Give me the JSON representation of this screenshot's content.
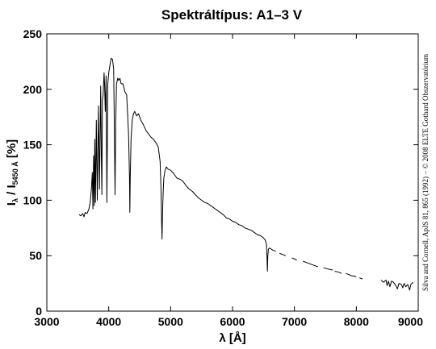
{
  "chart_data": {
    "type": "line",
    "title": "Spektráltípus: A1–3 V",
    "xlabel": "λ [Å]",
    "ylabel": {
      "main": "I",
      "sub1": "λ",
      "sep": " / I",
      "sub2": "5450 Å",
      "unit": " [%]"
    },
    "credit": "Silva and Cornell, ApJS 81, 865 (1992) − © 2008 ELTE Gothard Obszervatórium",
    "xlim": [
      3000,
      9000
    ],
    "ylim": [
      0,
      250
    ],
    "xticks": [
      3000,
      4000,
      5000,
      6000,
      7000,
      8000,
      9000
    ],
    "yticks": [
      0,
      50,
      100,
      150,
      200,
      250
    ],
    "grid": false,
    "color": "#000000",
    "series": [
      {
        "segments": [
          [
            [
              3520,
              87
            ],
            [
              3550,
              86
            ],
            [
              3580,
              88
            ],
            [
              3600,
              85
            ],
            [
              3620,
              89
            ],
            [
              3650,
              88
            ],
            [
              3680,
              92
            ],
            [
              3700,
              98
            ],
            [
              3720,
              110
            ],
            [
              3735,
              125
            ],
            [
              3745,
              92
            ],
            [
              3755,
              140
            ],
            [
              3765,
              95
            ],
            [
              3775,
              155
            ],
            [
              3785,
              98
            ],
            [
              3800,
              172
            ],
            [
              3815,
              100
            ],
            [
              3835,
              185
            ],
            [
              3850,
              110
            ],
            [
              3870,
              203
            ],
            [
              3880,
              140
            ],
            [
              3889,
              105
            ],
            [
              3898,
              190
            ],
            [
              3910,
              196
            ],
            [
              3925,
              215
            ],
            [
              3933,
              205
            ],
            [
              3945,
              180
            ],
            [
              3958,
              212
            ],
            [
              3970,
              98
            ],
            [
              3985,
              205
            ],
            [
              4000,
              215
            ],
            [
              4020,
              222
            ],
            [
              4040,
              228
            ],
            [
              4060,
              227
            ],
            [
              4080,
              218
            ],
            [
              4092,
              160
            ],
            [
              4102,
              105
            ],
            [
              4112,
              170
            ],
            [
              4125,
              205
            ],
            [
              4145,
              210
            ],
            [
              4160,
              208
            ],
            [
              4180,
              210
            ],
            [
              4200,
              205
            ],
            [
              4230,
              205
            ],
            [
              4260,
              198
            ],
            [
              4290,
              195
            ],
            [
              4320,
              160
            ],
            [
              4335,
              120
            ],
            [
              4341,
              89
            ],
            [
              4348,
              120
            ],
            [
              4360,
              155
            ],
            [
              4380,
              172
            ],
            [
              4400,
              178
            ],
            [
              4420,
              180
            ],
            [
              4450,
              176
            ],
            [
              4480,
              178
            ],
            [
              4520,
              172
            ],
            [
              4560,
              168
            ],
            [
              4600,
              163
            ],
            [
              4640,
              160
            ],
            [
              4680,
              157
            ],
            [
              4720,
              155
            ],
            [
              4760,
              152
            ],
            [
              4800,
              148
            ],
            [
              4830,
              135
            ],
            [
              4845,
              110
            ],
            [
              4855,
              80
            ],
            [
              4861,
              65
            ],
            [
              4868,
              85
            ],
            [
              4878,
              105
            ],
            [
              4890,
              120
            ],
            [
              4910,
              127
            ],
            [
              4930,
              130
            ],
            [
              4960,
              128
            ],
            [
              5000,
              127
            ],
            [
              5050,
              124
            ],
            [
              5100,
              120
            ],
            [
              5150,
              119
            ],
            [
              5200,
              117
            ],
            [
              5250,
              113
            ],
            [
              5300,
              110
            ],
            [
              5350,
              108
            ],
            [
              5400,
              105
            ],
            [
              5450,
              102
            ],
            [
              5500,
              100
            ],
            [
              5550,
              98
            ],
            [
              5600,
              97
            ],
            [
              5650,
              95
            ],
            [
              5700,
              93
            ],
            [
              5750,
              91
            ],
            [
              5800,
              89
            ],
            [
              5850,
              87
            ],
            [
              5900,
              84
            ],
            [
              5950,
              83
            ],
            [
              6000,
              81
            ],
            [
              6050,
              80
            ],
            [
              6100,
              78
            ],
            [
              6150,
              77
            ],
            [
              6200,
              75
            ],
            [
              6250,
              74
            ],
            [
              6300,
              73
            ],
            [
              6350,
              71
            ],
            [
              6400,
              69
            ],
            [
              6450,
              68
            ],
            [
              6500,
              66
            ],
            [
              6530,
              64
            ],
            [
              6548,
              60
            ],
            [
              6556,
              50
            ],
            [
              6563,
              36
            ],
            [
              6570,
              50
            ],
            [
              6580,
              56
            ],
            [
              6600,
              57
            ],
            [
              6650,
              55
            ],
            [
              6700,
              54
            ]
          ],
          [
            [
              6760,
              52
            ],
            [
              6860,
              50
            ]
          ],
          [
            [
              6960,
              48
            ],
            [
              7040,
              46
            ]
          ],
          [
            [
              7140,
              45
            ],
            [
              7280,
              42
            ],
            [
              7380,
              40
            ]
          ],
          [
            [
              7470,
              39
            ],
            [
              7620,
              37
            ]
          ],
          [
            [
              7650,
              36
            ],
            [
              7720,
              35
            ],
            [
              7760,
              34
            ]
          ],
          [
            [
              7830,
              34
            ],
            [
              7920,
              32
            ],
            [
              8000,
              31
            ]
          ],
          [
            [
              8050,
              30
            ],
            [
              8100,
              29
            ]
          ],
          [
            [
              8400,
              28
            ],
            [
              8440,
              26
            ],
            [
              8480,
              28
            ],
            [
              8498,
              23
            ],
            [
              8520,
              27
            ],
            [
              8542,
              22
            ],
            [
              8570,
              27
            ],
            [
              8600,
              26
            ],
            [
              8640,
              23
            ],
            [
              8662,
              20
            ],
            [
              8690,
              25
            ],
            [
              8730,
              24
            ],
            [
              8750,
              21
            ],
            [
              8770,
              25
            ],
            [
              8800,
              22
            ],
            [
              8830,
              24
            ],
            [
              8862,
              19
            ],
            [
              8880,
              24
            ],
            [
              8900,
              25
            ],
            [
              8920,
              26
            ]
          ]
        ]
      }
    ]
  }
}
